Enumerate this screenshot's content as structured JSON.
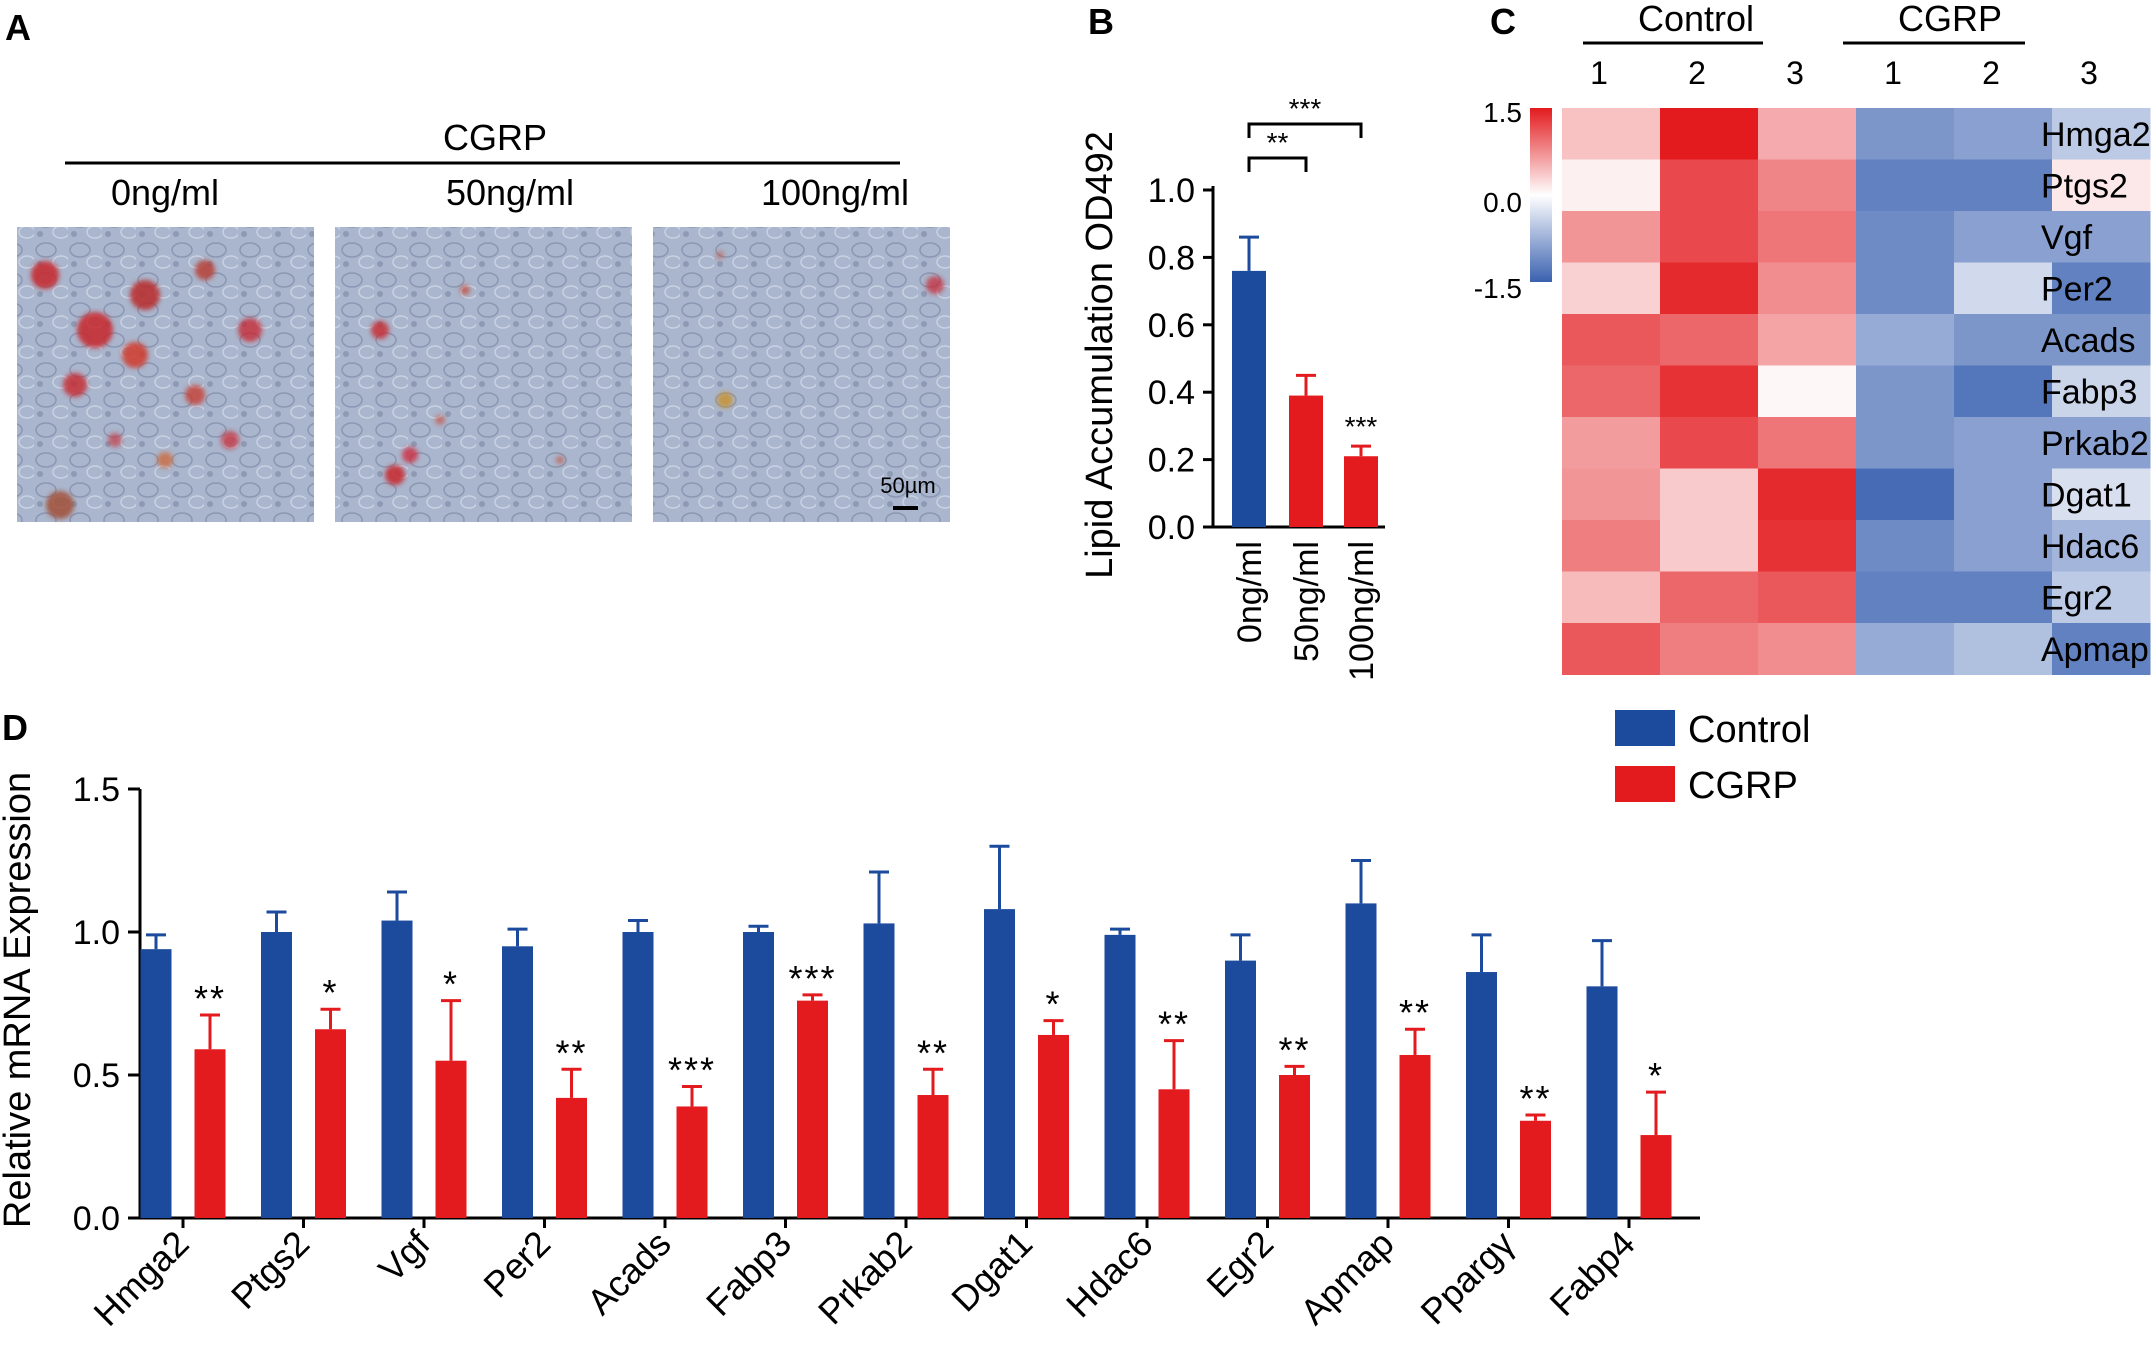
{
  "figure": {
    "panel_letters": [
      "A",
      "B",
      "C",
      "D"
    ]
  },
  "panel_a": {
    "header": "CGRP",
    "conditions": [
      "0ng/ml",
      "50ng/ml",
      "100ng/ml"
    ],
    "scale_bar": "50µm",
    "colors": {
      "background": "#a9b5cc",
      "stain": "#c8242c"
    }
  },
  "chart_data": [
    {
      "id": "B",
      "type": "bar",
      "categories": [
        "0ng/ml",
        "50ng/ml",
        "100ng/ml"
      ],
      "values": [
        0.76,
        0.39,
        0.21
      ],
      "errors": [
        0.1,
        0.06,
        0.03
      ],
      "colors": [
        "#1c4a9c",
        "#e31b1f",
        "#e31b1f"
      ],
      "ylabel": "Lipid Accumulation OD492",
      "ylim": [
        0,
        1.0
      ],
      "yticks": [
        0.0,
        0.2,
        0.4,
        0.6,
        0.8,
        1.0
      ],
      "ytick_labels": [
        "0.0",
        "0.2",
        "0.4",
        "0.6",
        "0.8",
        "1.0"
      ],
      "bar_annotations": [
        "",
        "",
        "***"
      ],
      "brackets": [
        {
          "from": 0,
          "to": 1,
          "label": "**"
        },
        {
          "from": 0,
          "to": 2,
          "label": "***"
        }
      ]
    },
    {
      "id": "C",
      "type": "heatmap",
      "group_labels": [
        "Control",
        "CGRP"
      ],
      "column_labels": [
        "1",
        "2",
        "3",
        "1",
        "2",
        "3"
      ],
      "row_labels": [
        "Hmga2",
        "Ptgs2",
        "Vgf",
        "Per2",
        "Acads",
        "Fabp3",
        "Prkab2",
        "Dgat1",
        "Hdac6",
        "Egr2",
        "Apmap"
      ],
      "values": [
        [
          0.4,
          1.5,
          0.55,
          -1.0,
          -0.9,
          -0.5
        ],
        [
          0.1,
          1.2,
          0.8,
          -1.2,
          -1.2,
          0.15
        ],
        [
          0.7,
          1.2,
          0.9,
          -1.1,
          -0.9,
          -0.9
        ],
        [
          0.3,
          1.4,
          0.75,
          -1.1,
          -0.35,
          -1.2
        ],
        [
          1.1,
          1.0,
          0.6,
          -0.8,
          -1.0,
          -1.0
        ],
        [
          1.0,
          1.35,
          0.05,
          -1.0,
          -1.3,
          -0.4
        ],
        [
          0.65,
          1.2,
          0.9,
          -1.0,
          -0.9,
          -0.9
        ],
        [
          0.7,
          0.35,
          1.4,
          -1.4,
          -0.9,
          -0.3
        ],
        [
          0.85,
          0.35,
          1.35,
          -1.1,
          -0.9,
          -0.7
        ],
        [
          0.45,
          1.0,
          1.1,
          -1.2,
          -1.2,
          -0.5
        ],
        [
          1.1,
          0.85,
          0.75,
          -0.8,
          -0.6,
          -1.2
        ]
      ],
      "colorbar": {
        "min": -1.5,
        "max": 1.5,
        "tick_labels": [
          "1.5",
          "0.0",
          "-1.5"
        ]
      },
      "colors": {
        "low": "#3a61b0",
        "mid": "#ffffff",
        "high": "#e31b1f"
      }
    },
    {
      "id": "D",
      "type": "bar",
      "categories": [
        "Hmga2",
        "Ptgs2",
        "Vgf",
        "Per2",
        "Acads",
        "Fabp3",
        "Prkab2",
        "Dgat1",
        "Hdac6",
        "Egr2",
        "Apmap",
        "Ppargγ",
        "Fabp4"
      ],
      "series": [
        {
          "name": "Control",
          "color": "#1c4a9c",
          "values": [
            0.94,
            1.0,
            1.04,
            0.95,
            1.0,
            1.0,
            1.03,
            1.08,
            0.99,
            0.9,
            1.1,
            0.86,
            0.81
          ],
          "errors": [
            0.05,
            0.07,
            0.1,
            0.06,
            0.04,
            0.02,
            0.18,
            0.22,
            0.02,
            0.09,
            0.15,
            0.13,
            0.16
          ]
        },
        {
          "name": "CGRP",
          "color": "#e31b1f",
          "values": [
            0.59,
            0.66,
            0.55,
            0.42,
            0.39,
            0.76,
            0.43,
            0.64,
            0.45,
            0.5,
            0.57,
            0.34,
            0.29
          ],
          "errors": [
            0.12,
            0.07,
            0.21,
            0.1,
            0.07,
            0.02,
            0.09,
            0.05,
            0.17,
            0.03,
            0.09,
            0.02,
            0.15
          ],
          "significance": [
            "**",
            "*",
            "*",
            "**",
            "***",
            "***",
            "**",
            "*",
            "**",
            "**",
            "**",
            "**",
            "*"
          ]
        }
      ],
      "ylabel": "Relative mRNA Expression",
      "ylim": [
        0,
        1.5
      ],
      "yticks": [
        0.0,
        0.5,
        1.0,
        1.5
      ],
      "ytick_labels": [
        "0.0",
        "0.5",
        "1.0",
        "1.5"
      ],
      "legend": [
        "Control",
        "CGRP"
      ],
      "legend_position": "top-right"
    }
  ]
}
